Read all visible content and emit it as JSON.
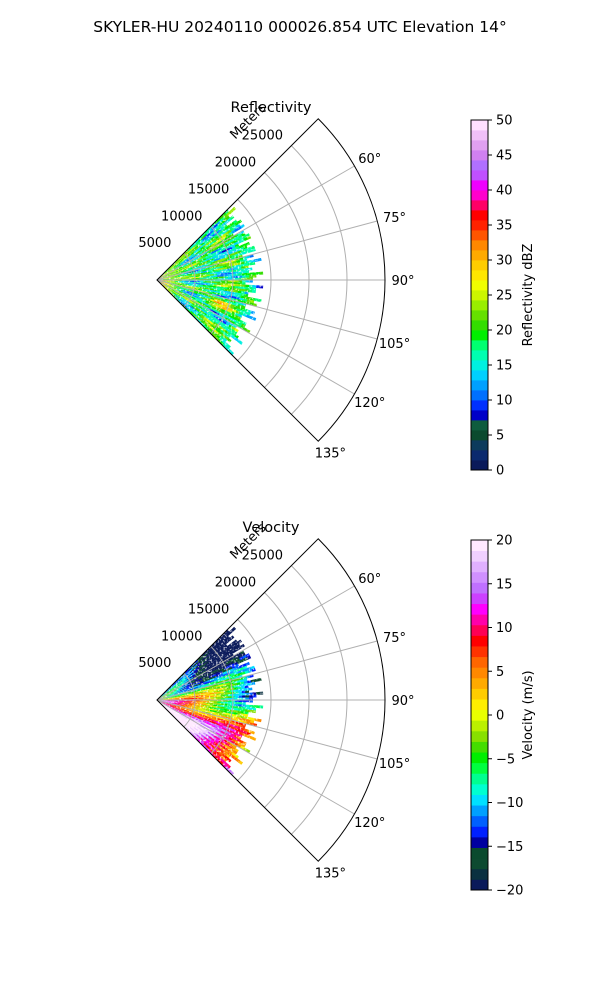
{
  "figure": {
    "suptitle": "SKYLER-HU  20240110  000026.854 UTC Elevation 14°"
  },
  "chart_data": [
    {
      "type": "heatmap",
      "subtype": "polar-sector-ppi",
      "title": "Reflectivity",
      "range_label": "Meters",
      "theta_range_deg": [
        45,
        135
      ],
      "theta_ticks": [
        60,
        75,
        90,
        105,
        120,
        135
      ],
      "theta_tick_labels": [
        "60°",
        "75°",
        "90°",
        "105°",
        "120°",
        "135°"
      ],
      "r_range": [
        0,
        30000
      ],
      "r_ticks": [
        5000,
        10000,
        15000,
        20000,
        25000
      ],
      "r_tick_labels": [
        "5000",
        "10000",
        "15000",
        "20000",
        "25000"
      ],
      "data_extent_m": 14000,
      "field": "reflectivity",
      "grid": true,
      "colorbar": {
        "label": "Reflectivity dBZ",
        "vmin": 0,
        "vmax": 50,
        "ticks": [
          0,
          5,
          10,
          15,
          20,
          25,
          30,
          35,
          40,
          45,
          50
        ],
        "tick_labels": [
          "0",
          "5",
          "10",
          "15",
          "20",
          "25",
          "30",
          "35",
          "40",
          "45",
          "50"
        ],
        "colors": [
          "#0a1a5a",
          "#0b2a6e",
          "#0d3b5c",
          "#0b4a2e",
          "#0e5c3e",
          "#0000c8",
          "#0030ff",
          "#0070ff",
          "#00a0ff",
          "#00d0ff",
          "#00f0e0",
          "#00ffb0",
          "#00ff70",
          "#00ee00",
          "#33dd00",
          "#66e000",
          "#99ee00",
          "#ccf500",
          "#f0ff00",
          "#ffe600",
          "#ffcc00",
          "#ffaa00",
          "#ff8800",
          "#ff5500",
          "#ff2200",
          "#ff0000",
          "#ff0066",
          "#ff00cc",
          "#ee00ff",
          "#c050ff",
          "#b070ff",
          "#d080f0",
          "#e0a0f0",
          "#f0c0f8",
          "#ffe0ff"
        ]
      }
    },
    {
      "type": "heatmap",
      "subtype": "polar-sector-ppi",
      "title": "Velocity",
      "range_label": "Meters",
      "theta_range_deg": [
        45,
        135
      ],
      "theta_ticks": [
        60,
        75,
        90,
        105,
        120,
        135
      ],
      "theta_tick_labels": [
        "60°",
        "75°",
        "90°",
        "105°",
        "120°",
        "135°"
      ],
      "r_range": [
        0,
        30000
      ],
      "r_ticks": [
        5000,
        10000,
        15000,
        20000,
        25000
      ],
      "r_tick_labels": [
        "5000",
        "10000",
        "15000",
        "20000",
        "25000"
      ],
      "data_extent_m": 14000,
      "field": "velocity",
      "grid": true,
      "colorbar": {
        "label": "Velocity (m/s)",
        "vmin": -20,
        "vmax": 20,
        "ticks": [
          -20,
          -15,
          -10,
          -5,
          0,
          5,
          10,
          15,
          20
        ],
        "tick_labels": [
          "−20",
          "−15",
          "−10",
          "−5",
          "0",
          "5",
          "10",
          "15",
          "20"
        ],
        "colors": [
          "#0a1a5a",
          "#0b3040",
          "#0d4a30",
          "#0b4a2e",
          "#0000a0",
          "#0020ff",
          "#0060ff",
          "#00a0ff",
          "#00e0ff",
          "#00ffd0",
          "#00ff90",
          "#00ff40",
          "#00ee00",
          "#44dd00",
          "#88e000",
          "#bbf000",
          "#e8ff00",
          "#ffee00",
          "#ffcc00",
          "#ffaa00",
          "#ff8800",
          "#ff6600",
          "#ff3300",
          "#ff0000",
          "#ff0055",
          "#ff00aa",
          "#ff00ff",
          "#cc40ff",
          "#c070ff",
          "#d090ff",
          "#e0b0ff",
          "#f0d0ff",
          "#ffe8ff"
        ]
      }
    }
  ]
}
